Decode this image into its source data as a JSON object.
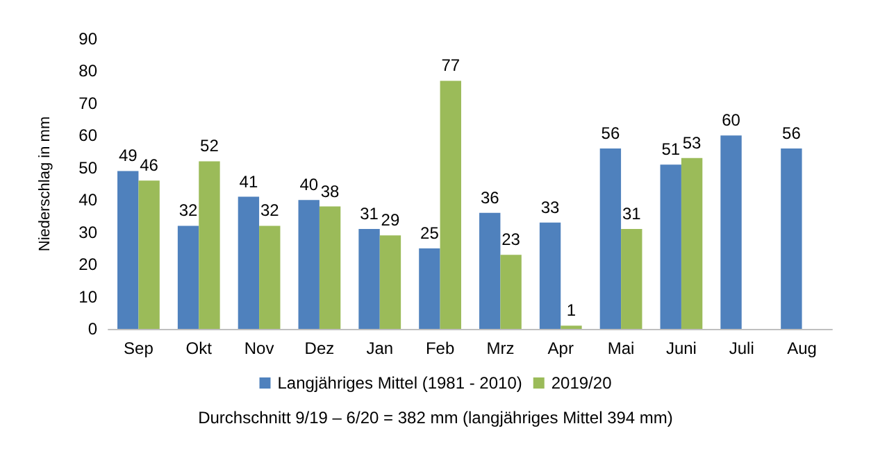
{
  "chart_data": {
    "type": "bar",
    "ylabel": "Niederschlag in mm",
    "categories": [
      "Sep",
      "Okt",
      "Nov",
      "Dez",
      "Jan",
      "Feb",
      "Mrz",
      "Apr",
      "Mai",
      "Juni",
      "Juli",
      "Aug"
    ],
    "series": [
      {
        "name": "Langjähriges Mittel (1981 - 2010)",
        "color": "#4f81bd",
        "values": [
          49,
          32,
          41,
          40,
          31,
          25,
          36,
          33,
          56,
          51,
          60,
          56
        ]
      },
      {
        "name": "2019/20",
        "color": "#9bbb59",
        "values": [
          46,
          52,
          32,
          38,
          29,
          77,
          23,
          1,
          31,
          53,
          null,
          null
        ]
      }
    ],
    "ylim": [
      0,
      90
    ],
    "yticks": [
      0,
      10,
      20,
      30,
      40,
      50,
      60,
      70,
      80,
      90
    ],
    "grid": false,
    "legend": "bottom",
    "data_labels": true,
    "annotations": [
      "Durchschnitt 9/19 – 6/20 = 382 mm (langjähriges Mittel 394 mm)"
    ]
  }
}
